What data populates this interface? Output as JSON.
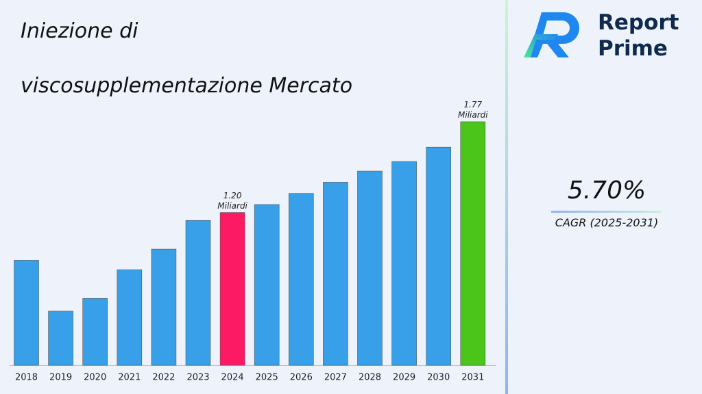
{
  "chart_data": {
    "type": "bar",
    "title": "Iniezione di viscosupplementazione Mercato",
    "categories": [
      "2018",
      "2019",
      "2020",
      "2021",
      "2022",
      "2023",
      "2024",
      "2025",
      "2026",
      "2027",
      "2028",
      "2029",
      "2030",
      "2031"
    ],
    "values": [
      0.9,
      0.58,
      0.66,
      0.84,
      0.97,
      1.15,
      1.2,
      1.25,
      1.32,
      1.39,
      1.46,
      1.52,
      1.61,
      1.77
    ],
    "value_labels": [
      null,
      null,
      null,
      null,
      null,
      null,
      "1.20 Miliardi",
      null,
      null,
      null,
      null,
      null,
      null,
      "1.77 Miliardi"
    ],
    "colors": [
      "#38a0e8",
      "#38a0e8",
      "#38a0e8",
      "#38a0e8",
      "#38a0e8",
      "#38a0e8",
      "#fc1a64",
      "#38a0e8",
      "#38a0e8",
      "#38a0e8",
      "#38a0e8",
      "#38a0e8",
      "#38a0e8",
      "#4cc51a"
    ],
    "ylim": [
      0.24,
      1.9
    ],
    "cagr": "5.70%",
    "cagr_label": "CAGR (2025-2031)",
    "brand": [
      "Report",
      "Prime"
    ]
  }
}
